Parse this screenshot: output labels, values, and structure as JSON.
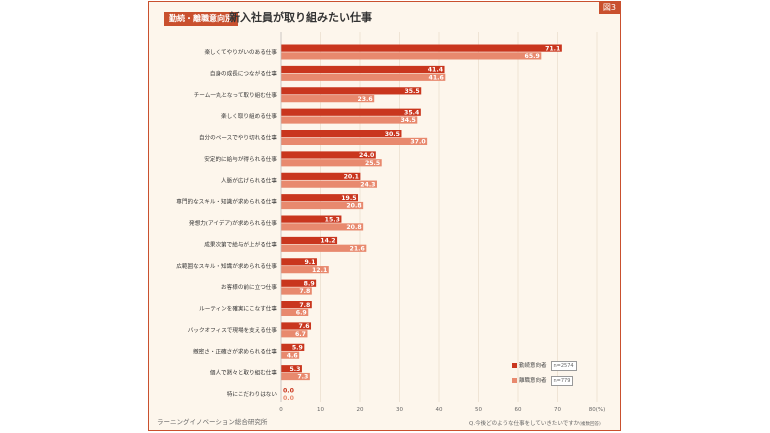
{
  "figure_badge": "図3",
  "category_badge": "勤続・離職意向別",
  "title": "新入社員が取り組みたい仕事",
  "source": "ラーニングイノベーション総合研究所",
  "question_note": "Q.今後どのような仕事をしていきたいですか",
  "question_note_suffix": "(複数回答)",
  "legend": [
    {
      "label": "勤続意向者",
      "n": "n=2574",
      "color": "#c9361e"
    },
    {
      "label": "離職意向者",
      "n": "n=779",
      "color": "#e8896e"
    }
  ],
  "chart_data": {
    "type": "bar",
    "orientation": "horizontal",
    "xlim": [
      0,
      80
    ],
    "xticks": [
      "0",
      "10",
      "20",
      "30",
      "40",
      "50",
      "60",
      "70",
      "80(%)"
    ],
    "grid": true,
    "categories": [
      "楽しくてやりがいのある仕事",
      "自身の成長につながる仕事",
      "チーム一丸となって取り組む仕事",
      "楽しく取り組める仕事",
      "自分のペースでやり切れる仕事",
      "安定的に給与が得られる仕事",
      "人脈が広げられる仕事",
      "専門的なスキル・知識が求められる仕事",
      "発想力(アイデア)が求められる仕事",
      "成果次第で給与が上がる仕事",
      "広範囲なスキル・知識が求められる仕事",
      "お客様の前に立つ仕事",
      "ルーティンを確実にこなす仕事",
      "バックオフィスで現場を支える仕事",
      "緻密さ・正確さが求められる仕事",
      "個人で黙々と取り組む仕事",
      "特にこだわりはない"
    ],
    "series": [
      {
        "name": "勤続意向者",
        "color": "#c9361e",
        "values": [
          71.1,
          41.4,
          35.5,
          35.4,
          30.5,
          24.0,
          20.1,
          19.5,
          15.3,
          14.2,
          9.1,
          8.9,
          7.8,
          7.6,
          5.9,
          5.3,
          0.0
        ]
      },
      {
        "name": "離職意向者",
        "color": "#e8896e",
        "values": [
          65.9,
          41.6,
          23.6,
          34.5,
          37.0,
          25.5,
          24.3,
          20.8,
          20.8,
          21.6,
          12.1,
          7.8,
          6.9,
          6.7,
          4.6,
          7.3,
          0.0
        ]
      }
    ]
  }
}
